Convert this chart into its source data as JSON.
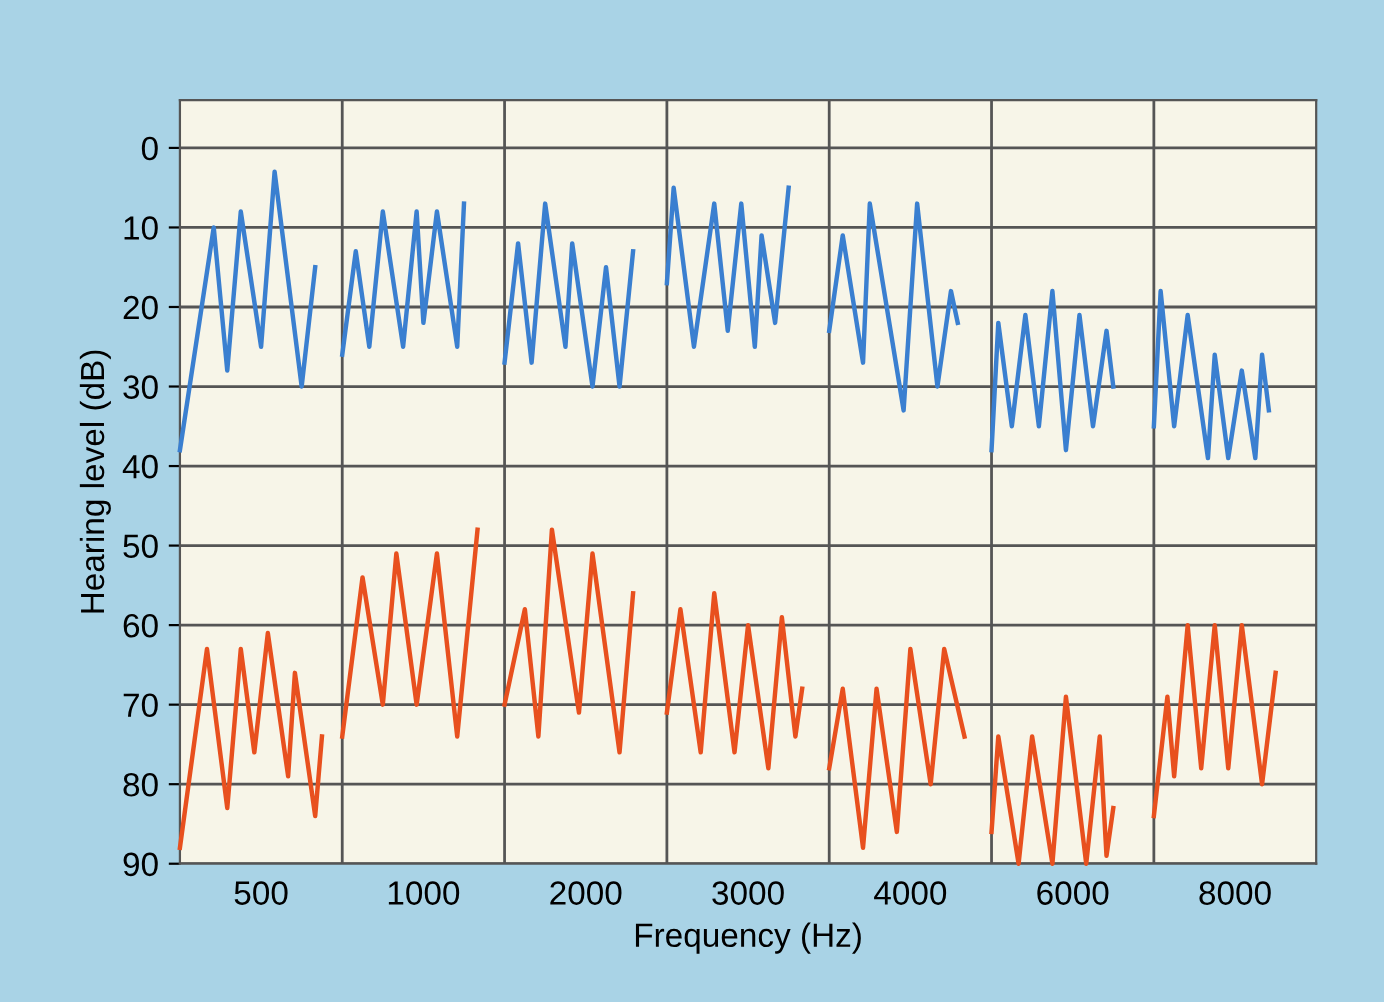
{
  "chart_data": {
    "type": "line",
    "xlabel": "Frequency (Hz)",
    "ylabel": "Hearing level (dB)",
    "ylim": [
      90,
      -6
    ],
    "yticks": [
      0,
      10,
      20,
      30,
      40,
      50,
      60,
      70,
      80,
      90
    ],
    "grid": true,
    "marker": "none",
    "line_style": "solid",
    "categories": [
      null,
      null,
      null,
      null,
      null,
      null,
      null,
      null,
      null,
      null,
      null,
      null,
      "500",
      null,
      null,
      null,
      null,
      null,
      null,
      null,
      null,
      null,
      null,
      null,
      null,
      null,
      null,
      null,
      null,
      null,
      null,
      null,
      null,
      null,
      null,
      null,
      "1000",
      null,
      null,
      null,
      null,
      null,
      null,
      null,
      null,
      null,
      null,
      null,
      null,
      null,
      null,
      null,
      null,
      null,
      null,
      null,
      null,
      null,
      null,
      null,
      "2000",
      null,
      null,
      null,
      null,
      null,
      null,
      null,
      null,
      null,
      null,
      null,
      null,
      null,
      null,
      null,
      null,
      null,
      null,
      null,
      null,
      null,
      null,
      null,
      "3000",
      null,
      null,
      null,
      null,
      null,
      null,
      null,
      null,
      null,
      null,
      null,
      null,
      null,
      null,
      null,
      null,
      null,
      null,
      null,
      null,
      null,
      null,
      null,
      "4000",
      null,
      null,
      null,
      null,
      null,
      null,
      null,
      null,
      null,
      null,
      null,
      null,
      null,
      null,
      null,
      null,
      null,
      null,
      null,
      null,
      null,
      null,
      null,
      "6000",
      null,
      null,
      null,
      null,
      null,
      null,
      null,
      null,
      null,
      null,
      null,
      null,
      null,
      null,
      null,
      null,
      null,
      null,
      null,
      null,
      null,
      null,
      null,
      "8000",
      null,
      null,
      null,
      null,
      null,
      null,
      null,
      null,
      null,
      null,
      null
    ],
    "series": [
      {
        "color": "#3a7fd0",
        "values": [
          38,
          null,
          null,
          null,
          null,
          10,
          null,
          28,
          null,
          8,
          null,
          null,
          25,
          null,
          3,
          null,
          null,
          null,
          30,
          null,
          15,
          null,
          null,
          null,
          26,
          null,
          13,
          null,
          25,
          null,
          8,
          null,
          null,
          25,
          null,
          8,
          22,
          null,
          8,
          null,
          null,
          25,
          7,
          null,
          null,
          null,
          null,
          null,
          27,
          null,
          12,
          null,
          27,
          null,
          7,
          null,
          null,
          25,
          12,
          null,
          null,
          30,
          null,
          15,
          null,
          30,
          null,
          13,
          null,
          null,
          null,
          null,
          17,
          5,
          null,
          null,
          25,
          null,
          null,
          7,
          null,
          23,
          null,
          7,
          null,
          25,
          11,
          null,
          22,
          null,
          5,
          null,
          null,
          null,
          null,
          null,
          23,
          null,
          11,
          null,
          null,
          27,
          7,
          null,
          null,
          null,
          null,
          33,
          null,
          7,
          null,
          null,
          30,
          null,
          18,
          22,
          null,
          null,
          null,
          null,
          38,
          22,
          null,
          35,
          null,
          21,
          null,
          35,
          null,
          18,
          null,
          38,
          null,
          21,
          null,
          35,
          null,
          23,
          30,
          null,
          null,
          null,
          null,
          null,
          35,
          18,
          null,
          35,
          null,
          21,
          null,
          null,
          39,
          26,
          null,
          39,
          null,
          28,
          null,
          39,
          26,
          33,
          null,
          null,
          null,
          null,
          null,
          null
        ]
      },
      {
        "color": "#e8501e",
        "values": [
          88,
          null,
          null,
          null,
          63,
          null,
          null,
          83,
          null,
          63,
          null,
          76,
          null,
          61,
          null,
          null,
          79,
          66,
          null,
          null,
          84,
          74,
          null,
          null,
          74,
          null,
          null,
          54,
          null,
          null,
          70,
          null,
          51,
          null,
          null,
          70,
          null,
          null,
          51,
          null,
          null,
          74,
          null,
          null,
          48,
          null,
          null,
          null,
          70,
          null,
          null,
          58,
          null,
          74,
          null,
          48,
          null,
          null,
          null,
          71,
          null,
          51,
          null,
          null,
          null,
          76,
          null,
          56,
          null,
          null,
          null,
          null,
          71,
          null,
          58,
          null,
          null,
          76,
          null,
          56,
          null,
          null,
          76,
          null,
          60,
          null,
          null,
          78,
          null,
          59,
          null,
          74,
          68,
          null,
          null,
          null,
          78,
          null,
          68,
          null,
          null,
          88,
          null,
          68,
          null,
          null,
          86,
          null,
          63,
          null,
          null,
          80,
          null,
          63,
          null,
          null,
          74,
          null,
          null,
          null,
          86,
          74,
          null,
          null,
          90,
          null,
          74,
          null,
          null,
          90,
          null,
          69,
          null,
          null,
          90,
          null,
          74,
          89,
          83,
          null,
          null,
          null,
          null,
          null,
          84,
          null,
          69,
          79,
          null,
          60,
          null,
          78,
          null,
          60,
          null,
          78,
          null,
          60,
          null,
          null,
          80,
          null,
          66,
          null,
          null,
          null,
          null,
          null
        ]
      }
    ]
  }
}
